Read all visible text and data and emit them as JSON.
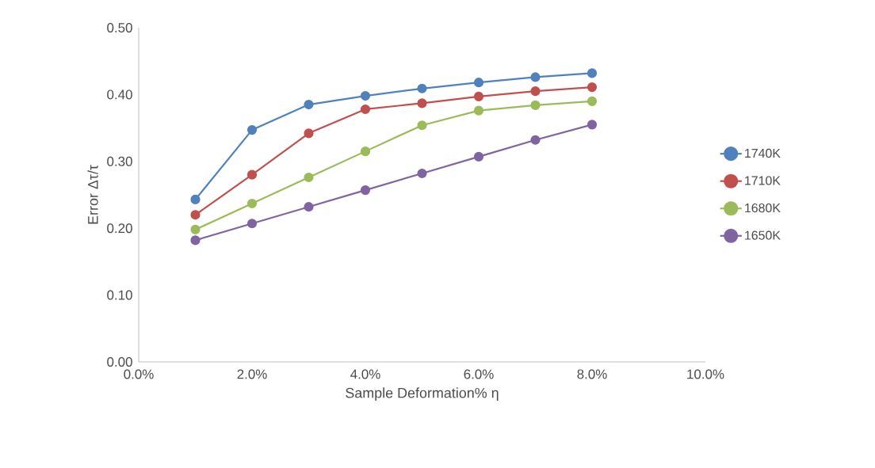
{
  "chart_data": {
    "type": "line",
    "xlabel": "Sample Deformation% η",
    "ylabel": "Error Δτ/τ",
    "x": [
      1,
      2,
      3,
      4,
      5,
      6,
      7,
      8
    ],
    "series": [
      {
        "name": "1740K",
        "color": "#4f81bd",
        "values": [
          0.243,
          0.347,
          0.385,
          0.398,
          0.409,
          0.418,
          0.426,
          0.432
        ]
      },
      {
        "name": "1710K",
        "color": "#c0504d",
        "values": [
          0.22,
          0.28,
          0.342,
          0.378,
          0.387,
          0.397,
          0.405,
          0.411
        ]
      },
      {
        "name": "1680K",
        "color": "#9bbb59",
        "values": [
          0.198,
          0.237,
          0.276,
          0.315,
          0.354,
          0.376,
          0.384,
          0.39
        ]
      },
      {
        "name": "1650K",
        "color": "#8064a2",
        "values": [
          0.182,
          0.207,
          0.232,
          0.257,
          0.282,
          0.307,
          0.332,
          0.355
        ]
      }
    ],
    "xlim": [
      0,
      10
    ],
    "xticks": [
      {
        "value": 0,
        "label": "0.0%"
      },
      {
        "value": 2,
        "label": "2.0%"
      },
      {
        "value": 4,
        "label": "4.0%"
      },
      {
        "value": 6,
        "label": "6.0%"
      },
      {
        "value": 8,
        "label": "8.0%"
      },
      {
        "value": 10,
        "label": "10.0%"
      }
    ],
    "ylim": [
      0,
      0.5
    ],
    "yticks": [
      {
        "value": 0,
        "label": "0.00"
      },
      {
        "value": 0.1,
        "label": "0.10"
      },
      {
        "value": 0.2,
        "label": "0.20"
      },
      {
        "value": 0.3,
        "label": "0.30"
      },
      {
        "value": 0.4,
        "label": "0.40"
      },
      {
        "value": 0.5,
        "label": "0.50"
      }
    ],
    "grid": false,
    "legend": "right",
    "marker": "circle",
    "line_style": "solid"
  }
}
